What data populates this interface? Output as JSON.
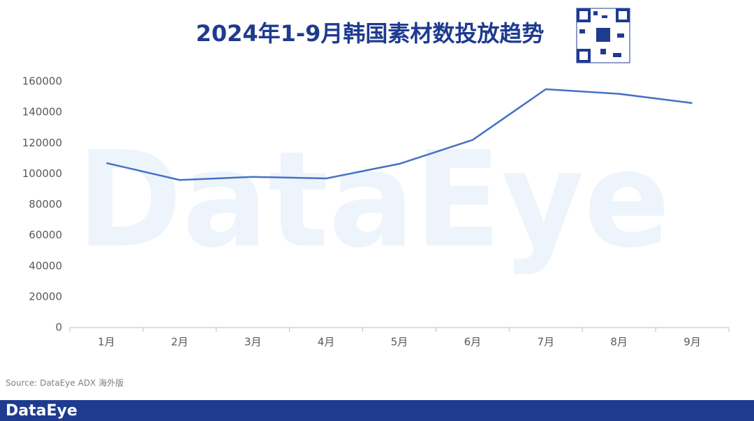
{
  "chart_data": {
    "type": "line",
    "title": "2024年1-9月韩国素材数投放趋势",
    "categories": [
      "1月",
      "2月",
      "3月",
      "4月",
      "5月",
      "6月",
      "7月",
      "8月",
      "9月"
    ],
    "series": [
      {
        "name": "素材数",
        "color": "#4472c4",
        "values": [
          107000,
          96000,
          98000,
          97000,
          106500,
          122000,
          155000,
          152000,
          146000
        ]
      }
    ],
    "ylim": [
      0,
      160000
    ],
    "yticks": [
      0,
      20000,
      40000,
      60000,
      80000,
      100000,
      120000,
      140000,
      160000
    ],
    "grid": false,
    "source": "Source: DataEye ADX 海外版",
    "watermark": "DataEye",
    "footer_logo": "DataEye"
  }
}
